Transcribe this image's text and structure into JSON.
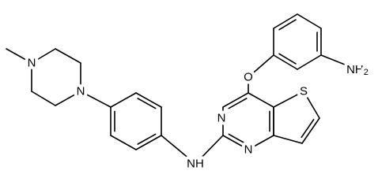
{
  "atoms": [
    {
      "label": "N"
    },
    {
      "label": "N"
    },
    {
      "label": "NH"
    },
    {
      "label": "N"
    },
    {
      "label": "N"
    },
    {
      "label": "O"
    },
    {
      "label": "S"
    },
    {
      "label": "NH",
      "subscript": "2"
    }
  ]
}
